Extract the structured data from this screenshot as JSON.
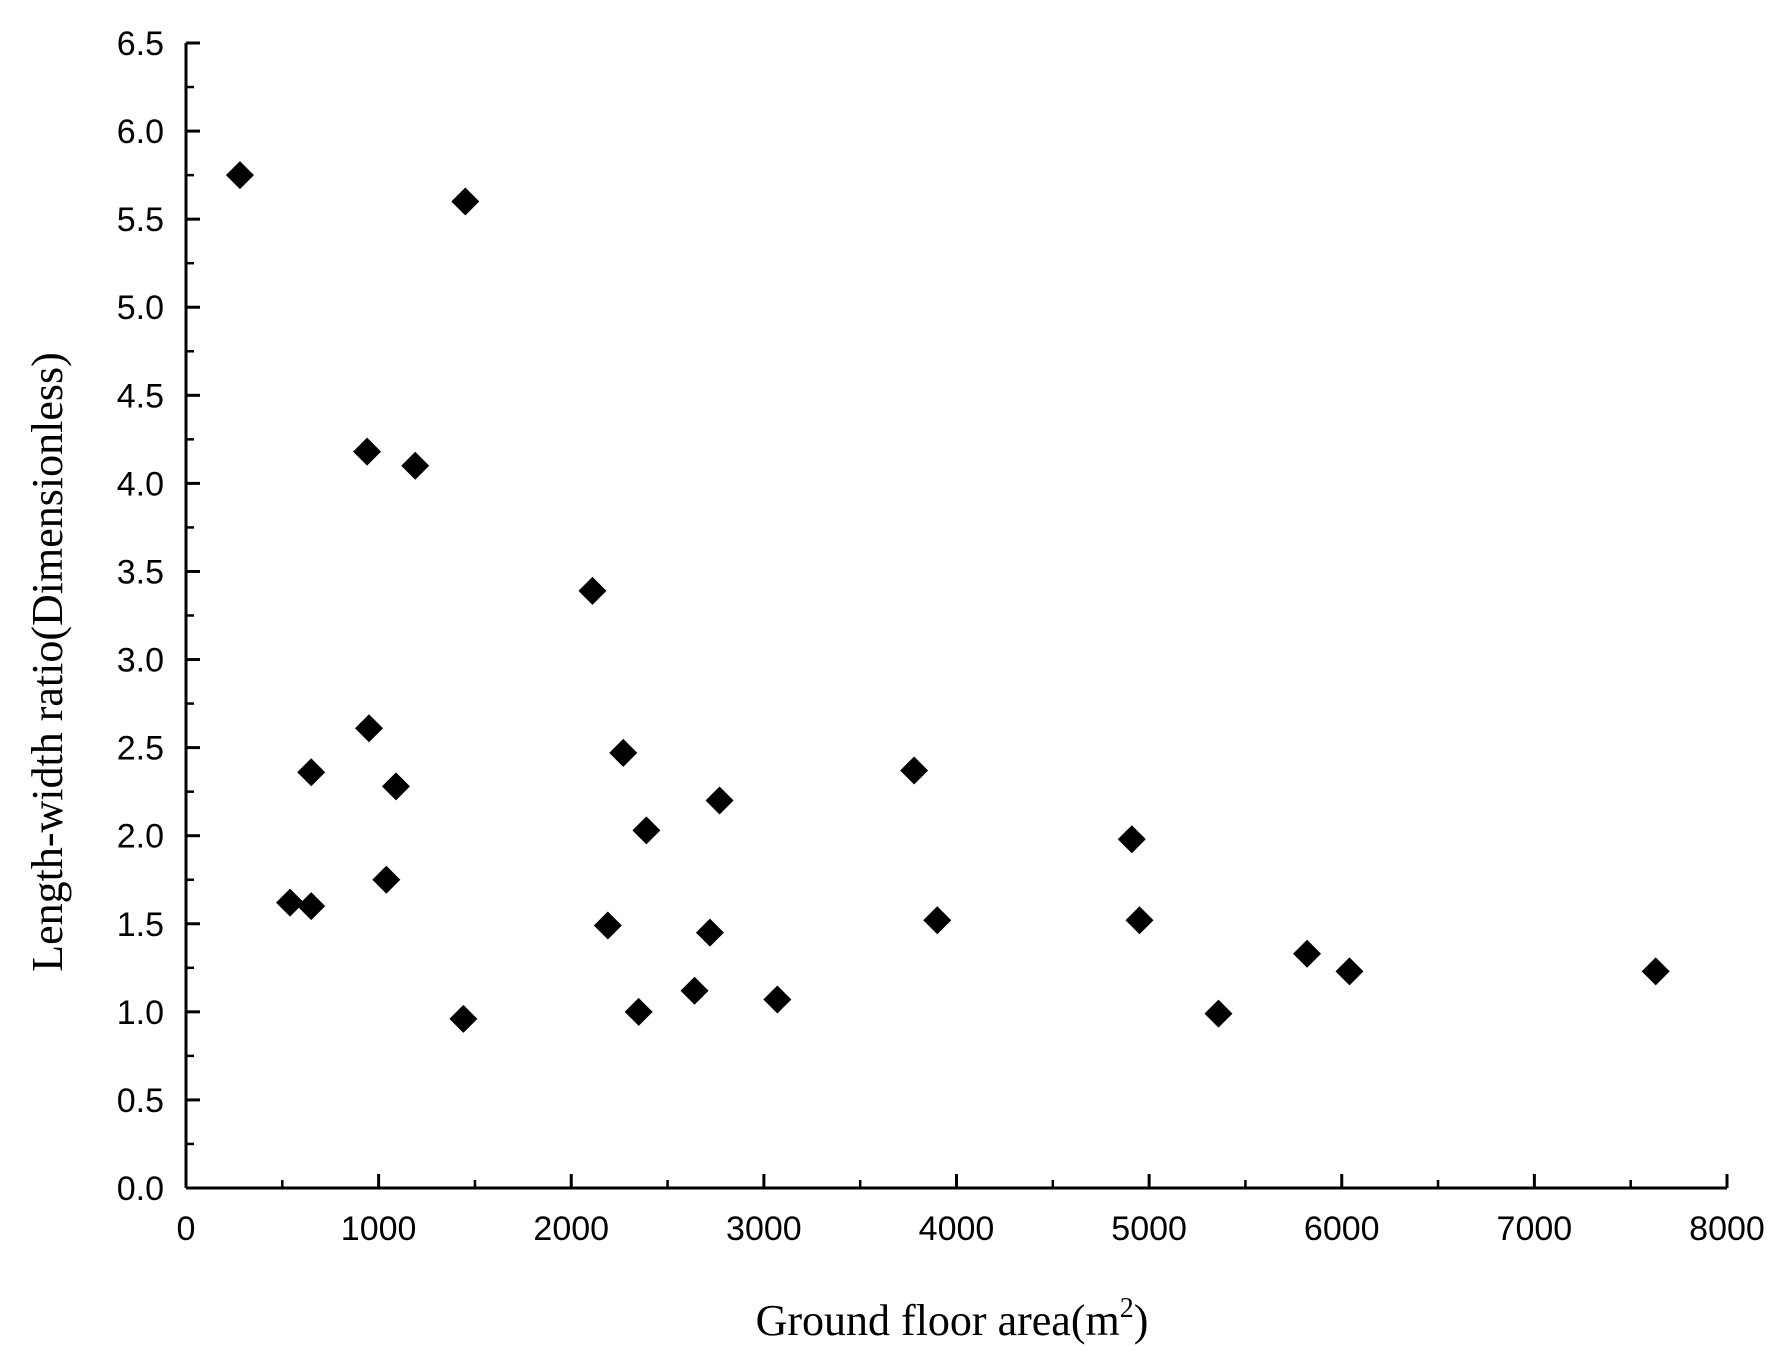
{
  "chart_data": {
    "type": "scatter",
    "title": "",
    "xlabel": "Ground floor area(m",
    "xlabel_superscript": "2",
    "xlabel_suffix": ")",
    "ylabel": "Length-width ratio(Dimensionless)",
    "xlim": [
      0,
      8000
    ],
    "ylim": [
      0,
      6.5
    ],
    "xticks": [
      0,
      1000,
      2000,
      3000,
      4000,
      5000,
      6000,
      7000,
      8000
    ],
    "xtick_labels": [
      "0",
      "1000",
      "2000",
      "3000",
      "4000",
      "5000",
      "6000",
      "7000",
      "8000"
    ],
    "yticks": [
      0,
      0.5,
      1.0,
      1.5,
      2.0,
      2.5,
      3.0,
      3.5,
      4.0,
      4.5,
      5.0,
      5.5,
      6.0,
      6.5
    ],
    "ytick_labels": [
      "0.0",
      "0.5",
      "1.0",
      "1.5",
      "2.0",
      "2.5",
      "3.0",
      "3.5",
      "4.0",
      "4.5",
      "5.0",
      "5.5",
      "6.0",
      "6.5"
    ],
    "marker": "diamond",
    "marker_color": "#000000",
    "grid": false,
    "legend": false,
    "series": [
      {
        "points": [
          [
            280,
            5.75
          ],
          [
            1450,
            5.6
          ],
          [
            940,
            4.18
          ],
          [
            1190,
            4.1
          ],
          [
            2110,
            3.39
          ],
          [
            950,
            2.61
          ],
          [
            2270,
            2.47
          ],
          [
            650,
            2.36
          ],
          [
            3780,
            2.37
          ],
          [
            1090,
            2.28
          ],
          [
            2770,
            2.2
          ],
          [
            2390,
            2.03
          ],
          [
            4910,
            1.98
          ],
          [
            1040,
            1.75
          ],
          [
            540,
            1.62
          ],
          [
            650,
            1.6
          ],
          [
            2190,
            1.49
          ],
          [
            3900,
            1.52
          ],
          [
            4950,
            1.52
          ],
          [
            2720,
            1.45
          ],
          [
            5820,
            1.33
          ],
          [
            6040,
            1.23
          ],
          [
            7630,
            1.23
          ],
          [
            2640,
            1.12
          ],
          [
            3070,
            1.07
          ],
          [
            2350,
            1.0
          ],
          [
            5360,
            0.99
          ],
          [
            1440,
            0.96
          ]
        ]
      }
    ]
  }
}
